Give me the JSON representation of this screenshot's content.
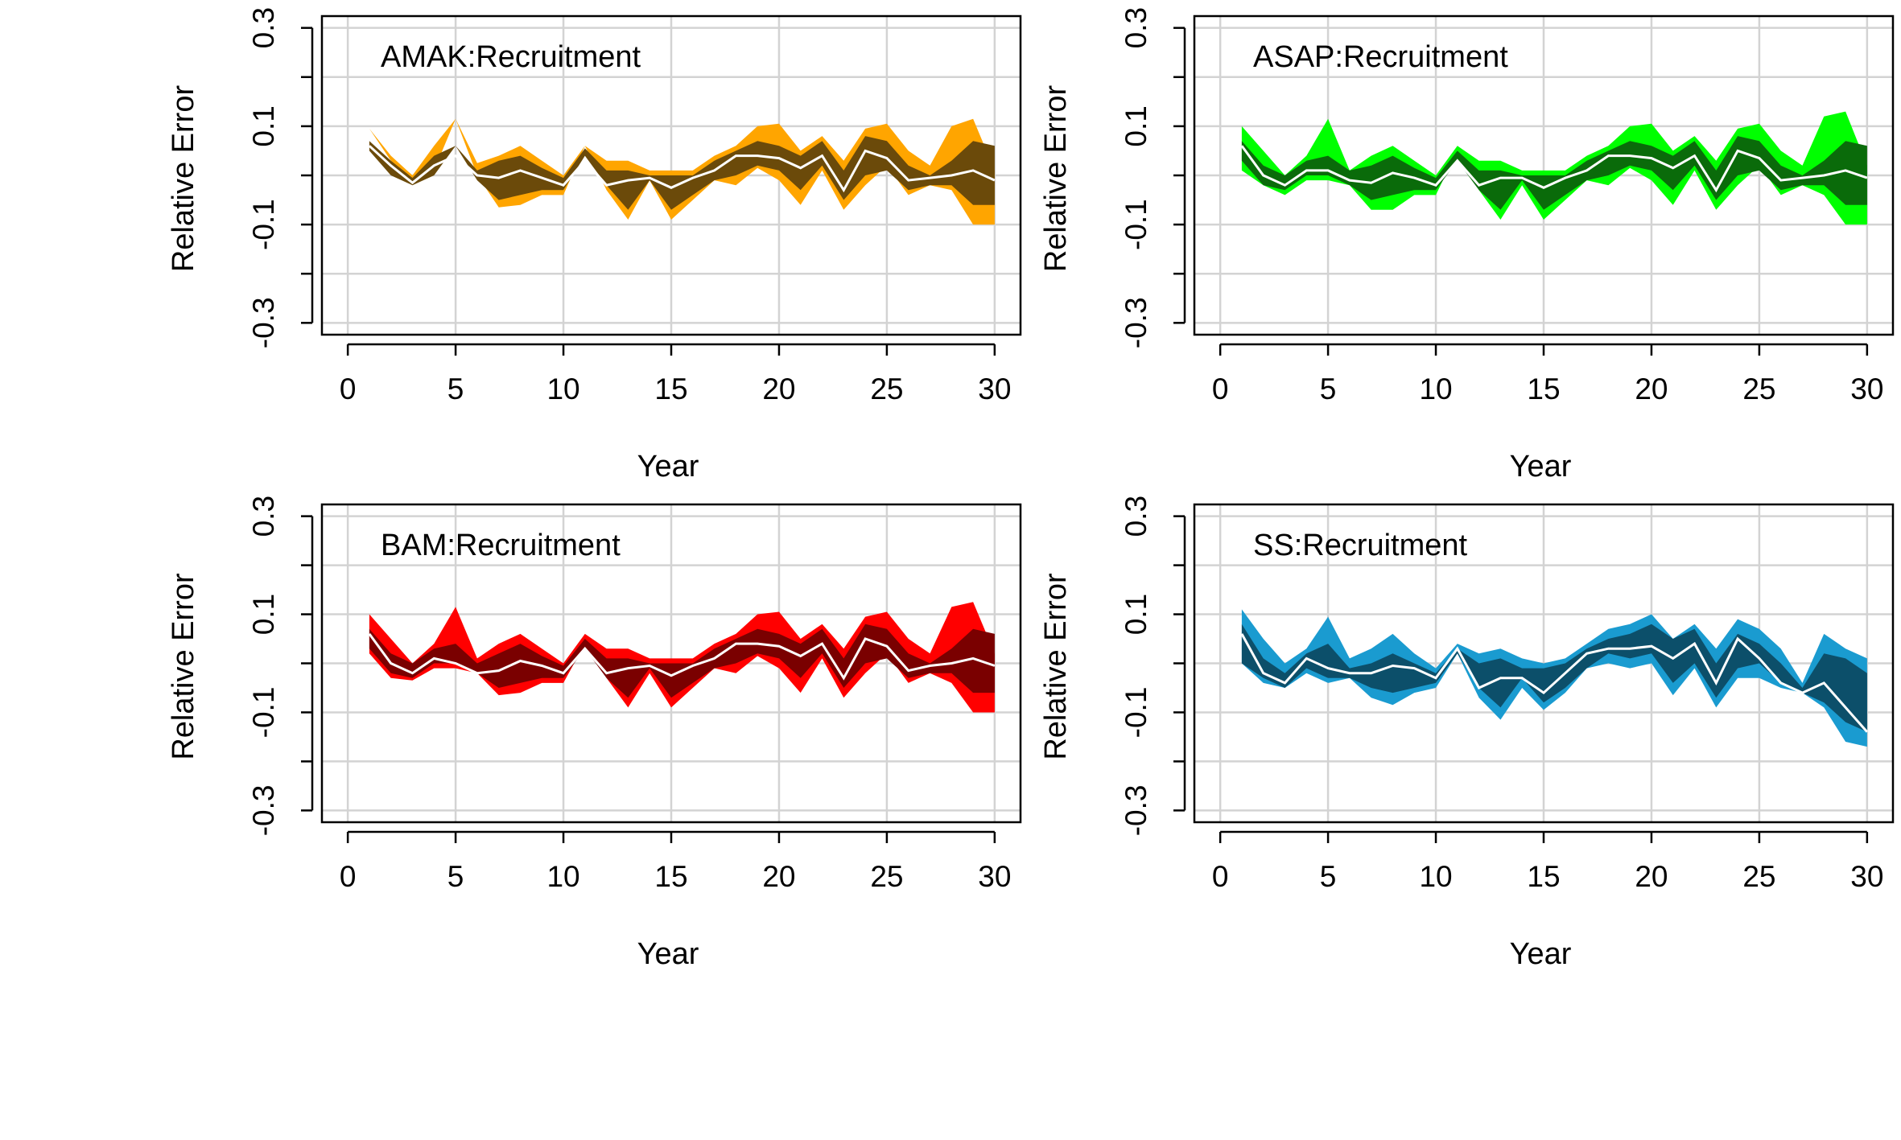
{
  "chart_data": [
    {
      "type": "area",
      "title": "AMAK:Recruitment",
      "xlabel": "Year",
      "ylabel": "Relative Error",
      "xlim": [
        0,
        30
      ],
      "ylim": [
        -0.3,
        0.3
      ],
      "xticks": [
        0,
        5,
        10,
        15,
        20,
        25,
        30
      ],
      "yticks": [
        -0.3,
        -0.1,
        0.1,
        0.3
      ],
      "grid": true,
      "colors": {
        "outer": "#FFA500",
        "inner": "#6B4A0A",
        "median": "#FFFFFF"
      },
      "x": [
        1,
        2,
        3,
        4,
        5,
        6,
        7,
        8,
        9,
        10,
        11,
        12,
        13,
        14,
        15,
        16,
        17,
        18,
        19,
        20,
        21,
        22,
        23,
        24,
        25,
        26,
        27,
        28,
        29,
        30
      ],
      "series": [
        {
          "values": [
            0.095,
            0.03,
            -0.01,
            0.01,
            0.115,
            0,
            -0.065,
            -0.06,
            -0.04,
            -0.04,
            0.06,
            -0.03,
            -0.09,
            -0.01,
            -0.09,
            -0.05,
            -0.01,
            -0.02,
            0.015,
            -0.01,
            -0.06,
            0.01,
            -0.07,
            -0.02,
            0.02,
            -0.04,
            -0.02,
            -0.03,
            -0.1,
            -0.1
          ],
          "role": "outer-lower"
        },
        {
          "values": [
            0.05,
            0,
            -0.02,
            0,
            0.06,
            -0.01,
            -0.05,
            -0.04,
            -0.03,
            -0.03,
            0.04,
            -0.02,
            -0.07,
            -0.01,
            -0.07,
            -0.04,
            -0.01,
            0,
            0.02,
            0.01,
            -0.03,
            0.02,
            -0.05,
            0,
            0.01,
            -0.03,
            -0.02,
            -0.02,
            -0.06,
            -0.06
          ],
          "role": "inner-lower"
        },
        {
          "values": [
            0.06,
            0.02,
            -0.015,
            0.02,
            0.04,
            0,
            -0.005,
            0.01,
            -0.005,
            -0.02,
            0.03,
            -0.02,
            -0.01,
            -0.005,
            -0.025,
            -0.005,
            0.01,
            0.04,
            0.04,
            0.035,
            0.015,
            0.04,
            -0.03,
            0.05,
            0.035,
            -0.01,
            -0.005,
            0,
            0.01,
            -0.01
          ],
          "role": "median"
        },
        {
          "values": [
            0.07,
            0.03,
            -0.005,
            0.04,
            0.06,
            0.01,
            0.03,
            0.04,
            0.015,
            -0.005,
            0.055,
            0.01,
            0.01,
            0,
            0,
            0,
            0.03,
            0.05,
            0.07,
            0.06,
            0.04,
            0.07,
            0.01,
            0.08,
            0.07,
            0.02,
            0,
            0.03,
            0.07,
            0.06
          ],
          "role": "inner-upper"
        },
        {
          "values": [
            0.095,
            0.04,
            0,
            0.06,
            0.115,
            0.025,
            0.04,
            0.06,
            0.03,
            0,
            0.06,
            0.03,
            0.03,
            0.01,
            0.01,
            0.01,
            0.04,
            0.06,
            0.1,
            0.105,
            0.05,
            0.08,
            0.03,
            0.095,
            0.105,
            0.05,
            0.02,
            0.1,
            0.115,
            0.01
          ],
          "role": "outer-upper"
        }
      ]
    },
    {
      "type": "area",
      "title": "ASAP:Recruitment",
      "xlabel": "Year",
      "ylabel": "Relative Error",
      "xlim": [
        0,
        30
      ],
      "ylim": [
        -0.3,
        0.3
      ],
      "xticks": [
        0,
        5,
        10,
        15,
        20,
        25,
        30
      ],
      "yticks": [
        -0.3,
        -0.1,
        0.1,
        0.3
      ],
      "grid": true,
      "colors": {
        "outer": "#00FF00",
        "inner": "#0A6B0A",
        "median": "#FFFFFF"
      },
      "x": [
        1,
        2,
        3,
        4,
        5,
        6,
        7,
        8,
        9,
        10,
        11,
        12,
        13,
        14,
        15,
        16,
        17,
        18,
        19,
        20,
        21,
        22,
        23,
        24,
        25,
        26,
        27,
        28,
        29,
        30
      ],
      "series": [
        {
          "values": [
            0.01,
            -0.02,
            -0.04,
            -0.01,
            -0.01,
            -0.02,
            -0.07,
            -0.07,
            -0.04,
            -0.04,
            0.05,
            -0.03,
            -0.09,
            -0.02,
            -0.09,
            -0.05,
            -0.01,
            -0.02,
            0.015,
            -0.01,
            -0.06,
            0.01,
            -0.07,
            -0.02,
            0.02,
            -0.04,
            -0.02,
            -0.04,
            -0.1,
            -0.1
          ],
          "role": "outer-lower"
        },
        {
          "values": [
            0.03,
            -0.02,
            -0.03,
            0,
            0,
            -0.02,
            -0.05,
            -0.04,
            -0.03,
            -0.03,
            0.03,
            -0.03,
            -0.07,
            -0.01,
            -0.07,
            -0.04,
            -0.01,
            0,
            0.02,
            0.01,
            -0.03,
            0.02,
            -0.05,
            0,
            0.01,
            -0.03,
            -0.02,
            -0.02,
            -0.06,
            -0.06
          ],
          "role": "inner-lower"
        },
        {
          "values": [
            0.06,
            0,
            -0.02,
            0.01,
            0.01,
            -0.01,
            -0.015,
            0.005,
            -0.005,
            -0.02,
            0.03,
            -0.02,
            -0.005,
            -0.005,
            -0.025,
            -0.005,
            0.01,
            0.04,
            0.04,
            0.035,
            0.015,
            0.04,
            -0.03,
            0.05,
            0.035,
            -0.01,
            -0.005,
            0,
            0.01,
            -0.005
          ],
          "role": "median"
        },
        {
          "values": [
            0.07,
            0.02,
            0,
            0.03,
            0.04,
            0.01,
            0.02,
            0.04,
            0.015,
            -0.005,
            0.05,
            0.01,
            0.01,
            0,
            0,
            0,
            0.03,
            0.05,
            0.07,
            0.06,
            0.04,
            0.07,
            0.01,
            0.08,
            0.07,
            0.02,
            0,
            0.03,
            0.07,
            0.06
          ],
          "role": "inner-upper"
        },
        {
          "values": [
            0.1,
            0.05,
            0,
            0.04,
            0.115,
            0.01,
            0.04,
            0.06,
            0.03,
            0,
            0.06,
            0.03,
            0.03,
            0.01,
            0.01,
            0.01,
            0.04,
            0.06,
            0.1,
            0.105,
            0.05,
            0.08,
            0.03,
            0.095,
            0.105,
            0.05,
            0.02,
            0.12,
            0.13,
            0.02
          ],
          "role": "outer-upper"
        }
      ]
    },
    {
      "type": "area",
      "title": "BAM:Recruitment",
      "xlabel": "Year",
      "ylabel": "Relative Error",
      "xlim": [
        0,
        30
      ],
      "ylim": [
        -0.3,
        0.3
      ],
      "xticks": [
        0,
        5,
        10,
        15,
        20,
        25,
        30
      ],
      "yticks": [
        -0.3,
        -0.1,
        0.1,
        0.3
      ],
      "grid": true,
      "colors": {
        "outer": "#FF0000",
        "inner": "#7A0000",
        "median": "#FFFFFF"
      },
      "x": [
        1,
        2,
        3,
        4,
        5,
        6,
        7,
        8,
        9,
        10,
        11,
        12,
        13,
        14,
        15,
        16,
        17,
        18,
        19,
        20,
        21,
        22,
        23,
        24,
        25,
        26,
        27,
        28,
        29,
        30
      ],
      "series": [
        {
          "values": [
            0.02,
            -0.03,
            -0.035,
            -0.01,
            -0.01,
            -0.02,
            -0.065,
            -0.06,
            -0.04,
            -0.04,
            0.04,
            -0.03,
            -0.09,
            -0.02,
            -0.09,
            -0.05,
            -0.01,
            -0.02,
            0.015,
            -0.01,
            -0.06,
            0.01,
            -0.07,
            -0.02,
            0.02,
            -0.04,
            -0.02,
            -0.04,
            -0.1,
            -0.1
          ],
          "role": "outer-lower"
        },
        {
          "values": [
            0.03,
            -0.02,
            -0.03,
            0,
            0,
            -0.02,
            -0.05,
            -0.04,
            -0.03,
            -0.03,
            0.03,
            -0.03,
            -0.07,
            -0.01,
            -0.07,
            -0.04,
            -0.01,
            0,
            0.02,
            0.01,
            -0.03,
            0.02,
            -0.05,
            0,
            0.01,
            -0.03,
            -0.02,
            -0.02,
            -0.06,
            -0.06
          ],
          "role": "inner-lower"
        },
        {
          "values": [
            0.06,
            0,
            -0.02,
            0.01,
            0,
            -0.02,
            -0.015,
            0.005,
            -0.005,
            -0.02,
            0.03,
            -0.02,
            -0.01,
            -0.005,
            -0.025,
            -0.005,
            0.01,
            0.04,
            0.04,
            0.035,
            0.015,
            0.04,
            -0.03,
            0.05,
            0.035,
            -0.015,
            -0.005,
            0,
            0.01,
            -0.005
          ],
          "role": "median"
        },
        {
          "values": [
            0.07,
            0.02,
            0,
            0.03,
            0.04,
            0,
            0.02,
            0.04,
            0.015,
            -0.005,
            0.05,
            0.01,
            0.01,
            0,
            0,
            0,
            0.03,
            0.05,
            0.07,
            0.06,
            0.04,
            0.07,
            0.01,
            0.08,
            0.07,
            0.02,
            0,
            0.03,
            0.07,
            0.06
          ],
          "role": "inner-upper"
        },
        {
          "values": [
            0.1,
            0.05,
            0,
            0.04,
            0.115,
            0.01,
            0.04,
            0.06,
            0.03,
            0,
            0.06,
            0.03,
            0.03,
            0.01,
            0.01,
            0.01,
            0.04,
            0.06,
            0.1,
            0.105,
            0.05,
            0.08,
            0.03,
            0.095,
            0.105,
            0.05,
            0.02,
            0.115,
            0.125,
            0.02
          ],
          "role": "outer-upper"
        }
      ]
    },
    {
      "type": "area",
      "title": "SS:Recruitment",
      "xlabel": "Year",
      "ylabel": "Relative Error",
      "xlim": [
        0,
        30
      ],
      "ylim": [
        -0.3,
        0.3
      ],
      "xticks": [
        0,
        5,
        10,
        15,
        20,
        25,
        30
      ],
      "yticks": [
        -0.3,
        -0.1,
        0.1,
        0.3
      ],
      "grid": true,
      "colors": {
        "outer": "#1A9BD0",
        "inner": "#0C4F6A",
        "median": "#FFFFFF"
      },
      "x": [
        1,
        2,
        3,
        4,
        5,
        6,
        7,
        8,
        9,
        10,
        11,
        12,
        13,
        14,
        15,
        16,
        17,
        18,
        19,
        20,
        21,
        22,
        23,
        24,
        25,
        26,
        27,
        28,
        29,
        30
      ],
      "series": [
        {
          "values": [
            0,
            -0.04,
            -0.05,
            -0.02,
            -0.04,
            -0.03,
            -0.07,
            -0.085,
            -0.06,
            -0.05,
            0.02,
            -0.07,
            -0.115,
            -0.05,
            -0.095,
            -0.06,
            -0.01,
            0,
            -0.01,
            0,
            -0.065,
            -0.01,
            -0.09,
            -0.03,
            -0.03,
            -0.05,
            -0.06,
            -0.09,
            -0.16,
            -0.17
          ],
          "role": "outer-lower"
        },
        {
          "values": [
            0,
            -0.03,
            -0.05,
            -0.01,
            -0.03,
            -0.03,
            -0.05,
            -0.06,
            -0.05,
            -0.04,
            0.02,
            -0.05,
            -0.09,
            -0.03,
            -0.08,
            -0.05,
            -0.01,
            0.02,
            0.01,
            0.02,
            -0.04,
            0,
            -0.07,
            -0.01,
            0,
            -0.04,
            -0.06,
            -0.08,
            -0.12,
            -0.14
          ],
          "role": "inner-lower"
        },
        {
          "values": [
            0.06,
            -0.02,
            -0.04,
            0.01,
            -0.01,
            -0.02,
            -0.02,
            -0.005,
            -0.01,
            -0.03,
            0.03,
            -0.05,
            -0.03,
            -0.03,
            -0.06,
            -0.02,
            0.02,
            0.03,
            0.03,
            0.035,
            0.01,
            0.04,
            -0.04,
            0.05,
            0.01,
            -0.04,
            -0.06,
            -0.04,
            -0.09,
            -0.14
          ],
          "role": "median"
        },
        {
          "values": [
            0.08,
            0.01,
            -0.02,
            0.02,
            0.04,
            -0.01,
            0,
            0.02,
            0,
            -0.02,
            0.03,
            0,
            0.01,
            -0.01,
            -0.01,
            0,
            0.03,
            0.05,
            0.06,
            0.08,
            0.05,
            0.07,
            0,
            0.06,
            0.04,
            0,
            -0.05,
            0.02,
            0.01,
            -0.02
          ],
          "role": "inner-upper"
        },
        {
          "values": [
            0.11,
            0.05,
            0,
            0.03,
            0.095,
            0.01,
            0.03,
            0.06,
            0.02,
            -0.01,
            0.04,
            0.02,
            0.03,
            0.01,
            0,
            0.01,
            0.04,
            0.07,
            0.08,
            0.1,
            0.05,
            0.08,
            0.03,
            0.09,
            0.07,
            0.03,
            -0.04,
            0.06,
            0.03,
            0.01
          ],
          "role": "outer-upper"
        }
      ]
    }
  ]
}
